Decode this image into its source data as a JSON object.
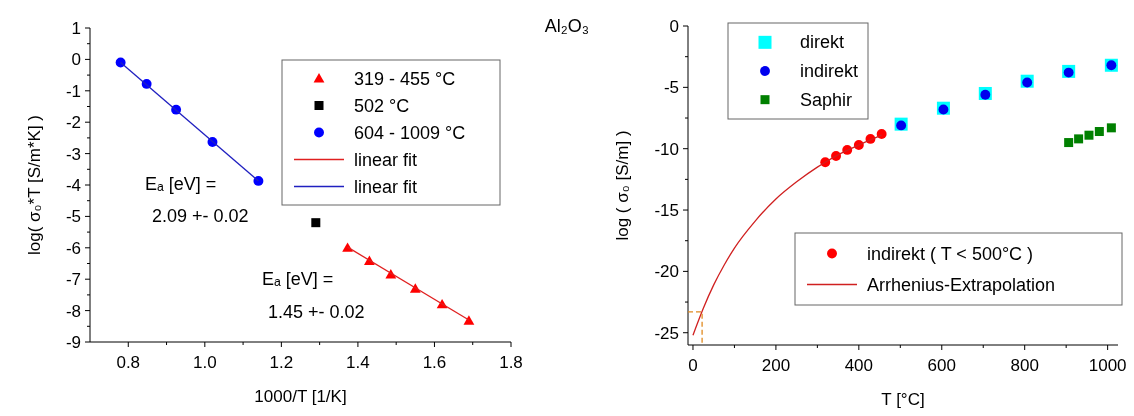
{
  "chart_data": [
    {
      "type": "scatter",
      "xlabel": "1000/T [1/K]",
      "ylabel": "log( σ₀*T  [S/m*K] )",
      "xlim": [
        0.7,
        1.8
      ],
      "xticks": [
        0.8,
        {
          "value": 1,
          "label": "1.0"
        },
        1.2,
        1.4,
        1.6,
        1.8
      ],
      "ylim": [
        -9,
        1
      ],
      "yticks": [
        1,
        0,
        -1,
        -2,
        -3,
        -4,
        -5,
        -6,
        -7,
        -8,
        -9
      ],
      "legend": "top right",
      "grid": false,
      "annotations": [
        "Eₐ [eV] =",
        "2.09 +- 0.02",
        "Eₐ [eV] =",
        "1.45 +- 0.02"
      ],
      "series": [
        {
          "name": "319 - 455 °C",
          "type": "scatter",
          "marker": "triangle",
          "color": "#ff0000",
          "x": [
            1.373,
            1.43,
            1.486,
            1.55,
            1.62,
            1.69
          ],
          "values": [
            -6.0,
            -6.42,
            -6.85,
            -7.3,
            -7.8,
            -8.32
          ]
        },
        {
          "name": "502 °C",
          "type": "scatter",
          "marker": "square",
          "color": "#000000",
          "x": [
            1.29
          ],
          "values": [
            -5.2
          ]
        },
        {
          "name": "604 - 1009 °C",
          "type": "scatter",
          "marker": "circle",
          "color": "#0000ff",
          "x": [
            0.78,
            0.848,
            0.925,
            1.02,
            1.14
          ],
          "values": [
            -0.1,
            -0.78,
            -1.6,
            -2.63,
            -3.87
          ]
        },
        {
          "name": "linear fit",
          "type": "line",
          "marker": "none",
          "line_style": "solid",
          "color": "#e02020",
          "x": [
            1.373,
            1.69
          ],
          "values": [
            -5.98,
            -8.3
          ]
        },
        {
          "name": "linear fit",
          "type": "line",
          "marker": "none",
          "line_style": "solid",
          "color": "#2020c0",
          "x": [
            0.78,
            1.14
          ],
          "values": [
            -0.1,
            -3.87
          ]
        }
      ]
    },
    {
      "type": "scatter",
      "title": "Al₂O₃",
      "xlabel": "T [°C]",
      "ylabel": "log ( σ₀ [S/m] )",
      "xlim": [
        -12,
        1025
      ],
      "xticks": [
        0,
        200,
        400,
        600,
        800,
        1000
      ],
      "ylim": [
        -26,
        0
      ],
      "yticks": [
        0,
        -5,
        -10,
        -15,
        -20,
        -25
      ],
      "legend": "top left",
      "grid": false,
      "series": [
        {
          "name": "direkt",
          "type": "scatter",
          "marker": "square",
          "color": "#00ffff",
          "x": [
            502,
            604,
            705,
            806,
            906,
            1009
          ],
          "values": [
            -8.0,
            -6.7,
            -5.5,
            -4.5,
            -3.7,
            -3.2
          ]
        },
        {
          "name": "indirekt",
          "type": "scatter",
          "marker": "circle",
          "color": "#0000ee",
          "x": [
            502,
            604,
            705,
            806,
            906,
            1009
          ],
          "values": [
            -8.1,
            -6.8,
            -5.6,
            -4.6,
            -3.8,
            -3.2
          ]
        },
        {
          "name": "Saphir",
          "type": "scatter",
          "marker": "square",
          "color": "#008000",
          "x": [
            906,
            930,
            955,
            980,
            1009
          ],
          "values": [
            -9.5,
            -9.2,
            -8.9,
            -8.6,
            -8.3
          ]
        },
        {
          "name": "indirekt  ( T < 500°C )",
          "type": "scatter",
          "marker": "circle",
          "color": "#ff0000",
          "x": [
            319,
            345,
            372,
            400,
            428,
            455
          ],
          "values": [
            -11.1,
            -10.6,
            -10.1,
            -9.7,
            -9.2,
            -8.8
          ]
        },
        {
          "name": "Arrhenius-Extrapolation",
          "type": "line",
          "marker": "none",
          "line_style": "solid",
          "color": "#d02020",
          "x": [
            0,
            25,
            50,
            75,
            100,
            150,
            200,
            250,
            300,
            319,
            350,
            400,
            455
          ],
          "values": [
            -25.2,
            -23.0,
            -21.1,
            -19.5,
            -18.1,
            -15.9,
            -14.1,
            -12.7,
            -11.5,
            -11.1,
            -10.5,
            -9.7,
            -8.9
          ]
        },
        {
          "type": "line",
          "marker": "none",
          "line_style": "dashed",
          "color": "#e08a20",
          "x": [
            -12,
            22,
            22
          ],
          "values": [
            -23.3,
            -23.3,
            -26
          ]
        }
      ]
    }
  ]
}
